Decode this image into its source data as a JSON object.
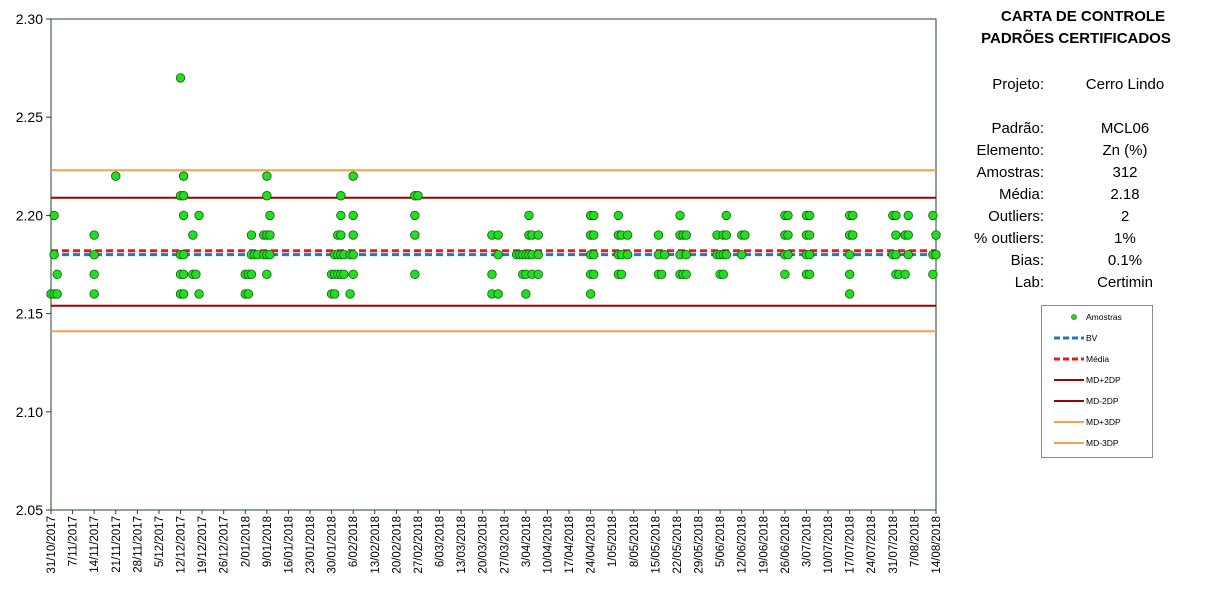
{
  "panel": {
    "title_line1": "CARTA DE CONTROLE",
    "title_line2": "PADRÕES CERTIFICADOS",
    "project_label": "Projeto:",
    "project_value": "Cerro Lindo",
    "stats": [
      {
        "label": "Padrão:",
        "value": "MCL06"
      },
      {
        "label": "Elemento:",
        "value": "Zn (%)"
      },
      {
        "label": "Amostras:",
        "value": "312"
      },
      {
        "label": "Média:",
        "value": "2.18"
      },
      {
        "label": "Outliers:",
        "value": "2"
      },
      {
        "label": "% outliers:",
        "value": "1%"
      },
      {
        "label": "Bias:",
        "value": "0.1%"
      },
      {
        "label": "Lab:",
        "value": "Certimin"
      }
    ]
  },
  "legend": {
    "items": [
      {
        "label": "Amostras",
        "kind": "marker",
        "color": "#22dd22"
      },
      {
        "label": "BV",
        "kind": "dashed",
        "color": "#1f77c8"
      },
      {
        "label": "Média",
        "kind": "dashed",
        "color": "#e81919"
      },
      {
        "label": "MD+2DP",
        "kind": "solid",
        "color": "#a00000"
      },
      {
        "label": "MD-2DP",
        "kind": "solid",
        "color": "#a00000"
      },
      {
        "label": "MD+3DP",
        "kind": "solid",
        "color": "#f4a24b"
      },
      {
        "label": "MD-3DP",
        "kind": "solid",
        "color": "#f4a24b"
      }
    ]
  },
  "chart_data": {
    "type": "scatter",
    "title": "",
    "xlabel": "",
    "ylabel": "",
    "ylim": [
      2.05,
      2.3
    ],
    "y_ticks": [
      "2.05",
      "2.10",
      "2.15",
      "2.20",
      "2.25",
      "2.30"
    ],
    "x_range": [
      "2017-10-31",
      "2018-08-14"
    ],
    "x_ticks": [
      "31/10/2017",
      "7/11/2017",
      "14/11/2017",
      "21/11/2017",
      "28/11/2017",
      "5/12/2017",
      "12/12/2017",
      "19/12/2017",
      "26/12/2017",
      "2/01/2018",
      "9/01/2018",
      "16/01/2018",
      "23/01/2018",
      "30/01/2018",
      "6/02/2018",
      "13/02/2018",
      "20/02/2018",
      "27/02/2018",
      "6/03/2018",
      "13/03/2018",
      "20/03/2018",
      "27/03/2018",
      "3/04/2018",
      "10/04/2018",
      "17/04/2018",
      "24/04/2018",
      "1/05/2018",
      "8/05/2018",
      "15/05/2018",
      "22/05/2018",
      "29/05/2018",
      "5/06/2018",
      "12/06/2018",
      "19/06/2018",
      "26/06/2018",
      "3/07/2018",
      "10/07/2018",
      "17/07/2018",
      "24/07/2018",
      "31/07/2018",
      "7/08/2018",
      "14/08/2018"
    ],
    "grid": false,
    "legend_position": "right",
    "reference_lines": [
      {
        "name": "BV",
        "value": 2.18,
        "color": "#1f77c8",
        "style": "dashed"
      },
      {
        "name": "Média",
        "value": 2.182,
        "color": "#e81919",
        "style": "dashed"
      },
      {
        "name": "MD+2DP",
        "value": 2.209,
        "color": "#a00000",
        "style": "solid"
      },
      {
        "name": "MD-2DP",
        "value": 2.154,
        "color": "#a00000",
        "style": "solid"
      },
      {
        "name": "MD+3DP",
        "value": 2.223,
        "color": "#f4a24b",
        "style": "solid"
      },
      {
        "name": "MD-3DP",
        "value": 2.141,
        "color": "#f4a24b",
        "style": "solid"
      }
    ],
    "series": [
      {
        "name": "Amostras",
        "color": "#22dd22",
        "points": [
          [
            "2017-10-31",
            2.16
          ],
          [
            "2017-11-01",
            2.16
          ],
          [
            "2017-11-01",
            2.18
          ],
          [
            "2017-11-01",
            2.2
          ],
          [
            "2017-11-02",
            2.17
          ],
          [
            "2017-11-02",
            2.16
          ],
          [
            "2017-11-14",
            2.19
          ],
          [
            "2017-11-14",
            2.18
          ],
          [
            "2017-11-14",
            2.17
          ],
          [
            "2017-11-14",
            2.16
          ],
          [
            "2017-11-21",
            2.22
          ],
          [
            "2017-12-12",
            2.27
          ],
          [
            "2017-12-12",
            2.21
          ],
          [
            "2017-12-12",
            2.18
          ],
          [
            "2017-12-12",
            2.17
          ],
          [
            "2017-12-12",
            2.16
          ],
          [
            "2017-12-13",
            2.22
          ],
          [
            "2017-12-13",
            2.21
          ],
          [
            "2017-12-13",
            2.2
          ],
          [
            "2017-12-13",
            2.18
          ],
          [
            "2017-12-13",
            2.17
          ],
          [
            "2017-12-13",
            2.16
          ],
          [
            "2017-12-16",
            2.19
          ],
          [
            "2017-12-16",
            2.17
          ],
          [
            "2017-12-17",
            2.17
          ],
          [
            "2017-12-18",
            2.2
          ],
          [
            "2017-12-18",
            2.16
          ],
          [
            "2018-01-02",
            2.17
          ],
          [
            "2018-01-02",
            2.16
          ],
          [
            "2018-01-03",
            2.17
          ],
          [
            "2018-01-03",
            2.16
          ],
          [
            "2018-01-04",
            2.19
          ],
          [
            "2018-01-04",
            2.18
          ],
          [
            "2018-01-04",
            2.17
          ],
          [
            "2018-01-05",
            2.18
          ],
          [
            "2018-01-06",
            2.18
          ],
          [
            "2018-01-08",
            2.19
          ],
          [
            "2018-01-08",
            2.18
          ],
          [
            "2018-01-09",
            2.22
          ],
          [
            "2018-01-09",
            2.21
          ],
          [
            "2018-01-09",
            2.19
          ],
          [
            "2018-01-09",
            2.18
          ],
          [
            "2018-01-09",
            2.17
          ],
          [
            "2018-01-10",
            2.2
          ],
          [
            "2018-01-10",
            2.19
          ],
          [
            "2018-01-10",
            2.18
          ],
          [
            "2018-01-30",
            2.17
          ],
          [
            "2018-01-30",
            2.16
          ],
          [
            "2018-01-31",
            2.18
          ],
          [
            "2018-01-31",
            2.17
          ],
          [
            "2018-01-31",
            2.16
          ],
          [
            "2018-02-01",
            2.19
          ],
          [
            "2018-02-01",
            2.18
          ],
          [
            "2018-02-01",
            2.17
          ],
          [
            "2018-02-02",
            2.21
          ],
          [
            "2018-02-02",
            2.2
          ],
          [
            "2018-02-02",
            2.19
          ],
          [
            "2018-02-02",
            2.18
          ],
          [
            "2018-02-02",
            2.17
          ],
          [
            "2018-02-03",
            2.18
          ],
          [
            "2018-02-03",
            2.17
          ],
          [
            "2018-02-05",
            2.18
          ],
          [
            "2018-02-05",
            2.16
          ],
          [
            "2018-02-06",
            2.22
          ],
          [
            "2018-02-06",
            2.2
          ],
          [
            "2018-02-06",
            2.19
          ],
          [
            "2018-02-06",
            2.18
          ],
          [
            "2018-02-06",
            2.17
          ],
          [
            "2018-02-26",
            2.21
          ],
          [
            "2018-02-26",
            2.2
          ],
          [
            "2018-02-26",
            2.19
          ],
          [
            "2018-02-26",
            2.17
          ],
          [
            "2018-02-27",
            2.21
          ],
          [
            "2018-03-23",
            2.19
          ],
          [
            "2018-03-23",
            2.17
          ],
          [
            "2018-03-23",
            2.16
          ],
          [
            "2018-03-25",
            2.19
          ],
          [
            "2018-03-25",
            2.18
          ],
          [
            "2018-03-25",
            2.16
          ],
          [
            "2018-03-31",
            2.18
          ],
          [
            "2018-04-01",
            2.18
          ],
          [
            "2018-04-02",
            2.18
          ],
          [
            "2018-04-02",
            2.17
          ],
          [
            "2018-04-03",
            2.18
          ],
          [
            "2018-04-03",
            2.17
          ],
          [
            "2018-04-03",
            2.16
          ],
          [
            "2018-04-04",
            2.2
          ],
          [
            "2018-04-04",
            2.19
          ],
          [
            "2018-04-04",
            2.18
          ],
          [
            "2018-04-05",
            2.19
          ],
          [
            "2018-04-05",
            2.18
          ],
          [
            "2018-04-05",
            2.17
          ],
          [
            "2018-04-07",
            2.19
          ],
          [
            "2018-04-07",
            2.18
          ],
          [
            "2018-04-07",
            2.17
          ],
          [
            "2018-04-24",
            2.2
          ],
          [
            "2018-04-24",
            2.19
          ],
          [
            "2018-04-24",
            2.18
          ],
          [
            "2018-04-24",
            2.17
          ],
          [
            "2018-04-24",
            2.16
          ],
          [
            "2018-04-25",
            2.2
          ],
          [
            "2018-04-25",
            2.19
          ],
          [
            "2018-04-25",
            2.18
          ],
          [
            "2018-04-25",
            2.17
          ],
          [
            "2018-05-03",
            2.2
          ],
          [
            "2018-05-03",
            2.19
          ],
          [
            "2018-05-03",
            2.18
          ],
          [
            "2018-05-03",
            2.17
          ],
          [
            "2018-05-04",
            2.19
          ],
          [
            "2018-05-04",
            2.18
          ],
          [
            "2018-05-04",
            2.17
          ],
          [
            "2018-05-06",
            2.19
          ],
          [
            "2018-05-06",
            2.18
          ],
          [
            "2018-05-16",
            2.19
          ],
          [
            "2018-05-16",
            2.18
          ],
          [
            "2018-05-16",
            2.17
          ],
          [
            "2018-05-17",
            2.17
          ],
          [
            "2018-05-18",
            2.18
          ],
          [
            "2018-05-23",
            2.2
          ],
          [
            "2018-05-23",
            2.19
          ],
          [
            "2018-05-23",
            2.18
          ],
          [
            "2018-05-23",
            2.17
          ],
          [
            "2018-05-24",
            2.19
          ],
          [
            "2018-05-24",
            2.17
          ],
          [
            "2018-05-25",
            2.19
          ],
          [
            "2018-05-25",
            2.18
          ],
          [
            "2018-05-25",
            2.17
          ],
          [
            "2018-06-04",
            2.19
          ],
          [
            "2018-06-04",
            2.18
          ],
          [
            "2018-06-05",
            2.18
          ],
          [
            "2018-06-05",
            2.17
          ],
          [
            "2018-06-06",
            2.19
          ],
          [
            "2018-06-06",
            2.18
          ],
          [
            "2018-06-06",
            2.17
          ],
          [
            "2018-06-07",
            2.2
          ],
          [
            "2018-06-07",
            2.19
          ],
          [
            "2018-06-07",
            2.18
          ],
          [
            "2018-06-12",
            2.19
          ],
          [
            "2018-06-12",
            2.18
          ],
          [
            "2018-06-13",
            2.19
          ],
          [
            "2018-06-26",
            2.2
          ],
          [
            "2018-06-26",
            2.19
          ],
          [
            "2018-06-26",
            2.18
          ],
          [
            "2018-06-26",
            2.17
          ],
          [
            "2018-06-27",
            2.2
          ],
          [
            "2018-06-27",
            2.19
          ],
          [
            "2018-06-27",
            2.18
          ],
          [
            "2018-07-03",
            2.2
          ],
          [
            "2018-07-03",
            2.19
          ],
          [
            "2018-07-03",
            2.18
          ],
          [
            "2018-07-03",
            2.17
          ],
          [
            "2018-07-04",
            2.2
          ],
          [
            "2018-07-04",
            2.19
          ],
          [
            "2018-07-04",
            2.18
          ],
          [
            "2018-07-04",
            2.17
          ],
          [
            "2018-07-17",
            2.2
          ],
          [
            "2018-07-17",
            2.19
          ],
          [
            "2018-07-17",
            2.18
          ],
          [
            "2018-07-17",
            2.17
          ],
          [
            "2018-07-17",
            2.16
          ],
          [
            "2018-07-18",
            2.2
          ],
          [
            "2018-07-18",
            2.19
          ],
          [
            "2018-07-31",
            2.2
          ],
          [
            "2018-07-31",
            2.18
          ],
          [
            "2018-08-01",
            2.2
          ],
          [
            "2018-08-01",
            2.19
          ],
          [
            "2018-08-01",
            2.18
          ],
          [
            "2018-08-01",
            2.17
          ],
          [
            "2018-08-02",
            2.17
          ],
          [
            "2018-08-04",
            2.19
          ],
          [
            "2018-08-04",
            2.17
          ],
          [
            "2018-08-05",
            2.2
          ],
          [
            "2018-08-05",
            2.19
          ],
          [
            "2018-08-05",
            2.18
          ],
          [
            "2018-08-13",
            2.2
          ],
          [
            "2018-08-13",
            2.18
          ],
          [
            "2018-08-13",
            2.17
          ],
          [
            "2018-08-14",
            2.19
          ],
          [
            "2018-08-14",
            2.18
          ]
        ]
      }
    ]
  }
}
